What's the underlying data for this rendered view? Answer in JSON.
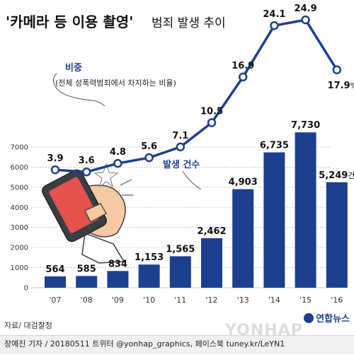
{
  "title": {
    "main": "'카메라 등 이용 촬영'",
    "sub": "범죄 발생 추이"
  },
  "chart_data": {
    "type": "bar",
    "categories": [
      "'07",
      "'08",
      "'09",
      "'10",
      "'11",
      "'12",
      "'13",
      "'14",
      "'15",
      "'16"
    ],
    "y_ticks": [
      "7000",
      "6000",
      "5000",
      "4000",
      "3000",
      "2000",
      "1000",
      "0"
    ],
    "ylim": [
      0,
      7800
    ],
    "series": [
      {
        "name": "발생 건수",
        "kind": "bar",
        "values": [
          564,
          585,
          834,
          1153,
          1565,
          2462,
          4903,
          6735,
          7730,
          5249
        ],
        "labels": [
          "564",
          "585",
          "834",
          "1,153",
          "1,565",
          "2,462",
          "4,903",
          "6,735",
          "7,730",
          "5,249"
        ],
        "last_label_unit": "건",
        "color": "#1d3f8f"
      },
      {
        "name": "비중",
        "subtitle": "(전체 성폭력범죄에서 차지하는 비율)",
        "kind": "line",
        "values": [
          3.9,
          3.6,
          4.8,
          5.6,
          7.1,
          10.5,
          16.9,
          24.1,
          24.9,
          17.9
        ],
        "labels": [
          "3.9",
          "3.6",
          "4.8",
          "5.6",
          "7.1",
          "10.5",
          "16.9",
          "24.1",
          "24.9",
          "17.9"
        ],
        "last_label_unit": "%",
        "color": "#1d3f8f"
      }
    ],
    "grid": true
  },
  "source": "자료/ 대검찰청",
  "footer": "장예진 기자 / 20180511 트위터 @yonhap_graphics, 페이스북 tuney.kr/LeYN1",
  "logo": "연합뉴스",
  "watermark": "YONHAP NEWS"
}
